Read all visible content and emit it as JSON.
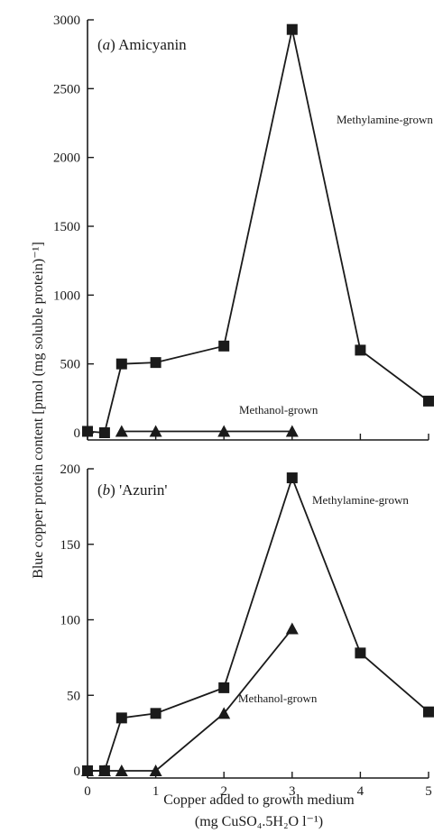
{
  "chart_data": [
    {
      "type": "line",
      "panel": "(a)",
      "title": "Amicyanin",
      "x": [
        0,
        0.25,
        0.5,
        1,
        2,
        3,
        4,
        5
      ],
      "ylim": [
        0,
        3000
      ],
      "xlim": [
        0,
        5
      ],
      "yticks": [
        "0",
        "500",
        "1000",
        "1500",
        "2000",
        "2500",
        "3000"
      ],
      "series": [
        {
          "name": "Methylamine-grown",
          "marker": "square",
          "points": [
            [
              0,
              10
            ],
            [
              0.25,
              0
            ],
            [
              0.5,
              500
            ],
            [
              1,
              510
            ],
            [
              2,
              630
            ],
            [
              3,
              2930
            ],
            [
              4,
              600
            ],
            [
              5,
              230
            ]
          ]
        },
        {
          "name": "Methanol-grown",
          "marker": "triangle",
          "points": [
            [
              0.5,
              10
            ],
            [
              1,
              10
            ],
            [
              2,
              10
            ],
            [
              3,
              10
            ]
          ]
        }
      ]
    },
    {
      "type": "line",
      "panel": "(b)",
      "title": "'Azurin'",
      "ylim": [
        0,
        200
      ],
      "xlim": [
        0,
        5
      ],
      "yticks": [
        "0",
        "50",
        "100",
        "150",
        "200"
      ],
      "xticks": [
        "0",
        "1",
        "2",
        "3",
        "4",
        "5"
      ],
      "series": [
        {
          "name": "Methylamine-grown",
          "marker": "square",
          "points": [
            [
              0,
              0
            ],
            [
              0.25,
              0
            ],
            [
              0.5,
              35
            ],
            [
              1,
              38
            ],
            [
              2,
              55
            ],
            [
              3,
              194
            ],
            [
              4,
              78
            ],
            [
              5,
              39
            ]
          ]
        },
        {
          "name": "Methanol-grown",
          "marker": "triangle",
          "points": [
            [
              0,
              0
            ],
            [
              0.25,
              0
            ],
            [
              0.5,
              0
            ],
            [
              1,
              0
            ],
            [
              2,
              38
            ],
            [
              3,
              94
            ]
          ]
        }
      ]
    }
  ],
  "axes": {
    "ylabel": "Blue copper protein content [pmol (mg soluble protein)⁻¹]",
    "xlabel_line1": "Copper added to growth medium",
    "xlabel_line2": "(mg CuSO₄.5H₂O l⁻¹)"
  }
}
